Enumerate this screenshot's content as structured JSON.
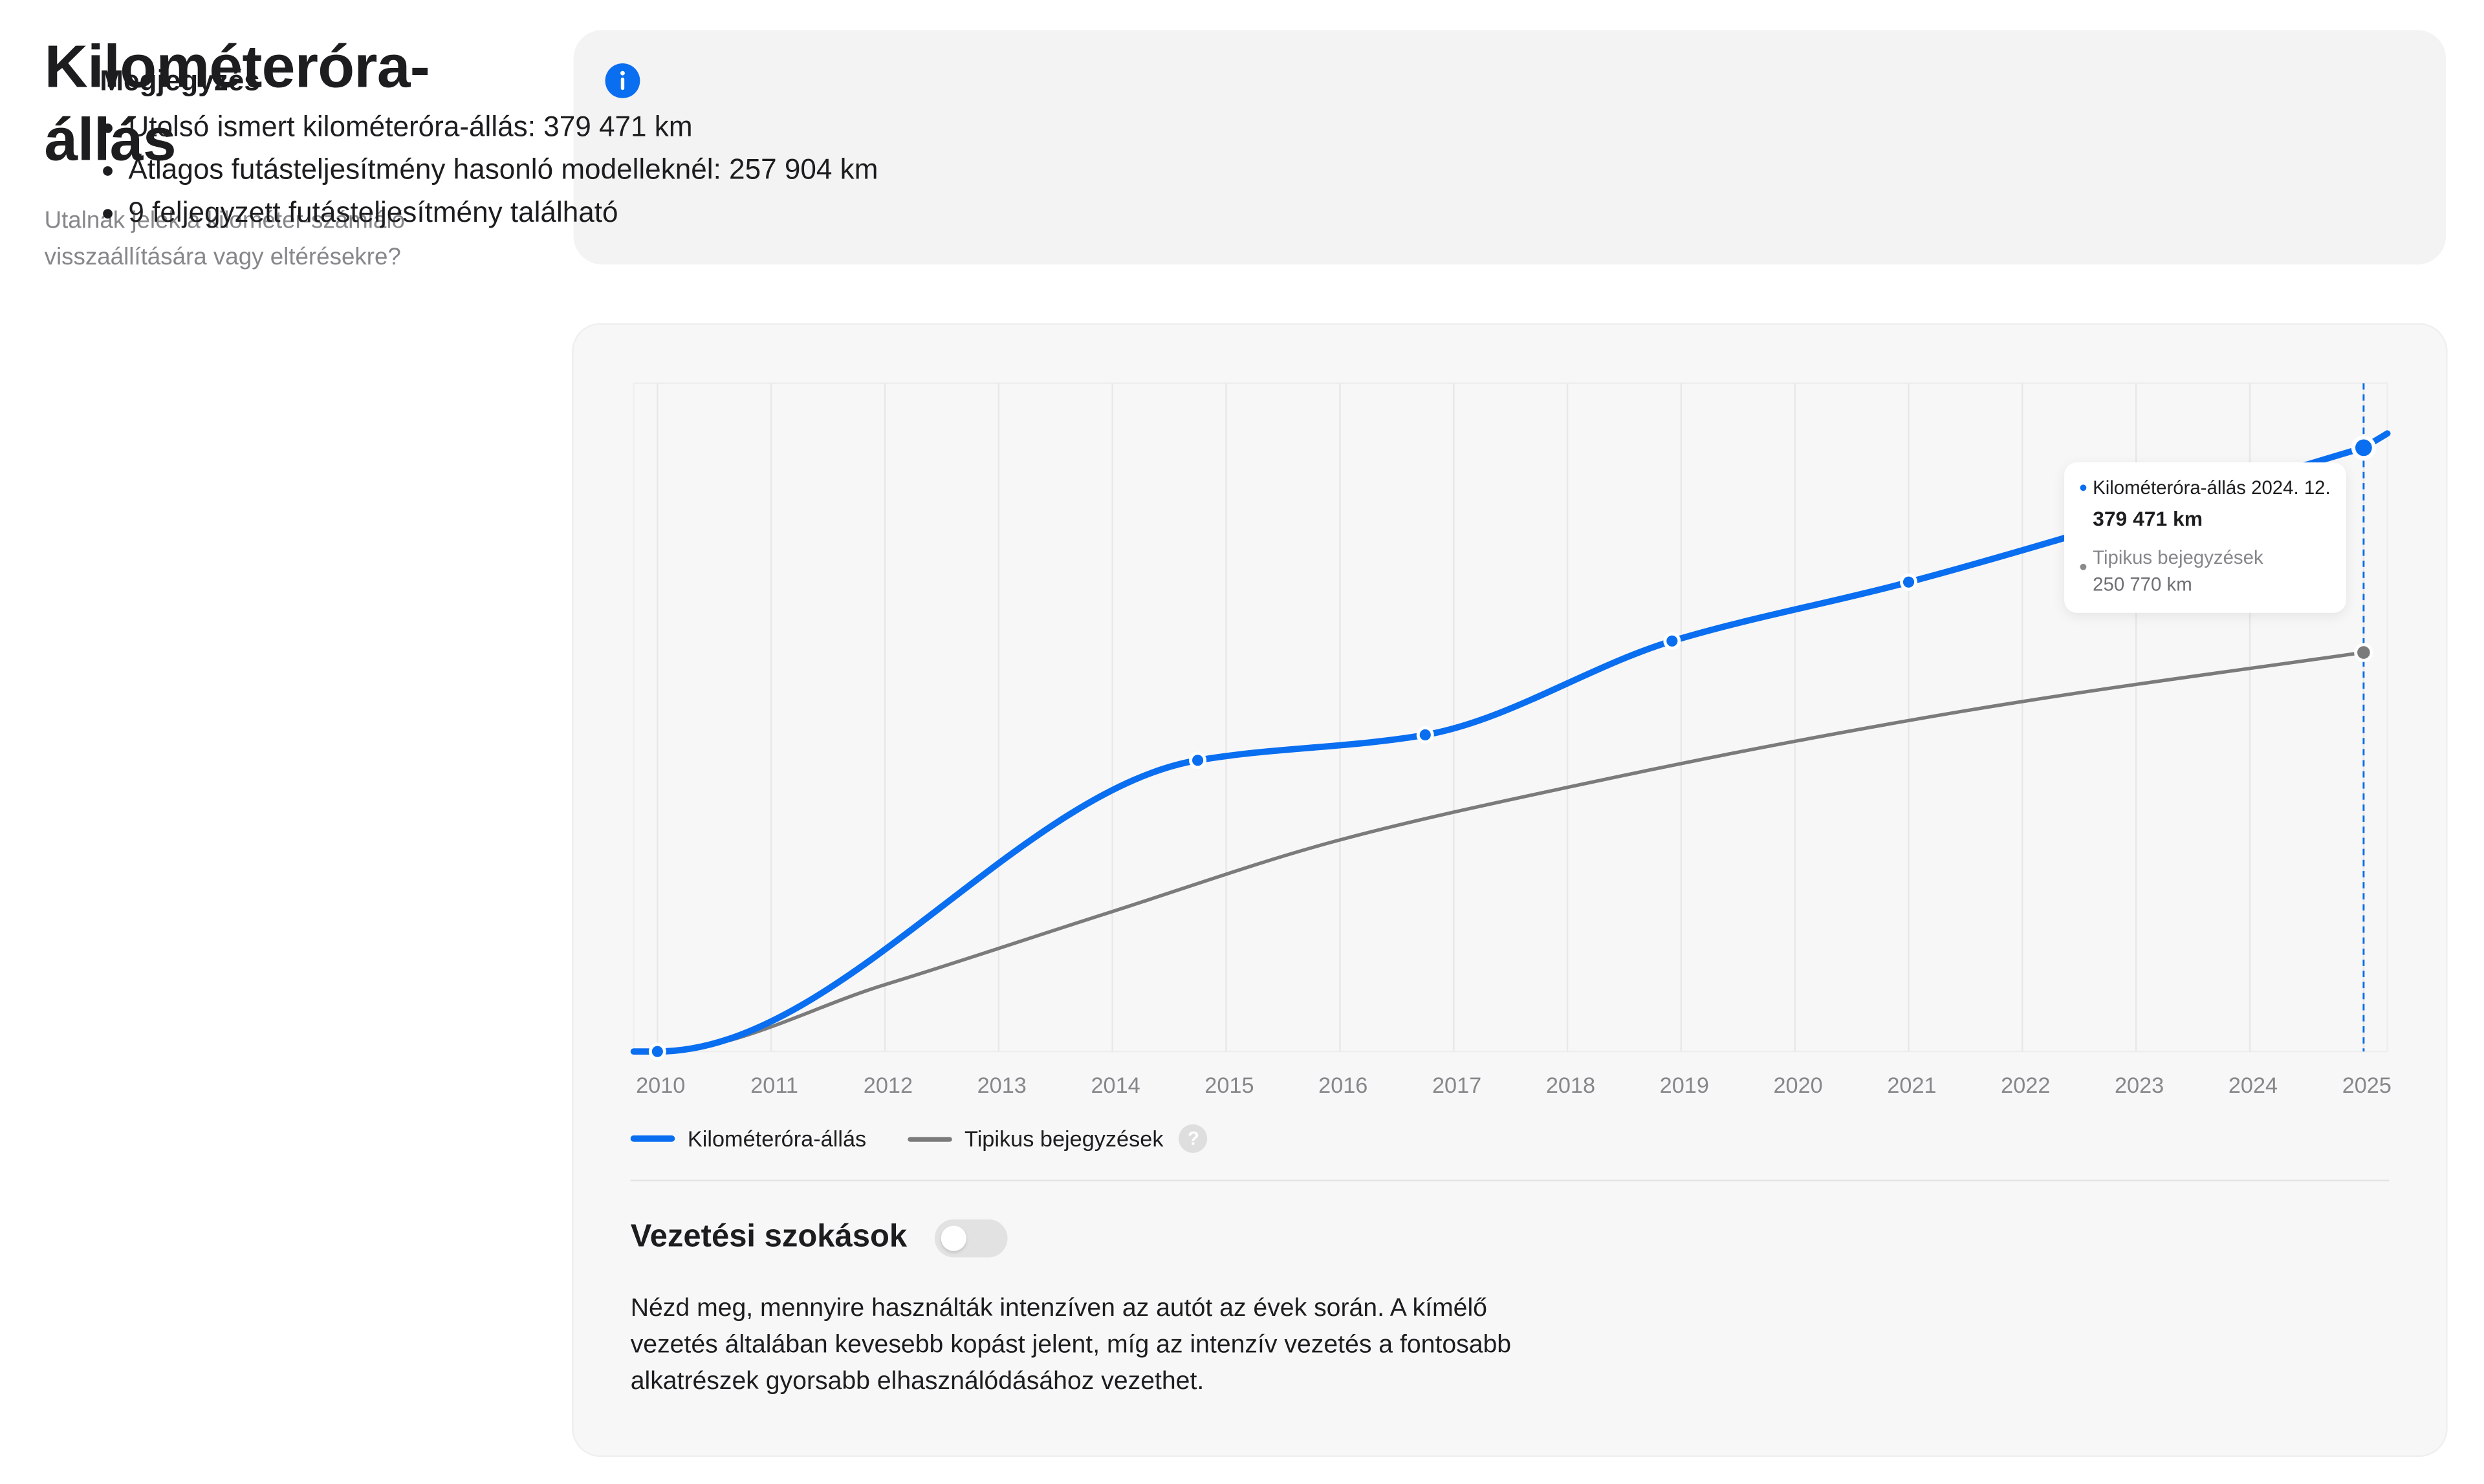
{
  "page": {
    "title": "Kilométeróra-állás",
    "subtitle": "Utalnak jelek a kilométer-számláló visszaállítására vagy eltérésekre?"
  },
  "note": {
    "icon": "info-icon",
    "title": "Megjegyzés",
    "items": [
      "Utolsó ismert kilométeróra-állás: 379 471 km",
      "Átlagos futásteljesítmény hasonló modelleknél: 257 904 km",
      "9 feljegyzett futásteljesítmény található"
    ]
  },
  "legend": {
    "odometer": "Kilométeróra-állás",
    "typical": "Tipikus bejegyzések",
    "help_icon": "question-mark-icon",
    "help_glyph": "?"
  },
  "tooltip": {
    "label1": "Kilométeróra-állás 2024. 12.",
    "value1": "379 471 km",
    "label2": "Tipikus bejegyzések",
    "value2": "250 770 km"
  },
  "habits": {
    "title": "Vezetési szokások",
    "toggle_on": false,
    "text": "Nézd meg, mennyire használták intenzíven az autót az évek során. A kímélő vezetés általában kevesebb kopást jelent, míg az intenzív vezetés a fontosabb alkatrészek gyorsabb elhasználódásához vezethet."
  },
  "colors": {
    "accent": "#0a6ef0",
    "typical": "#7b7b7b",
    "info": "#0a6ef0"
  },
  "chart_data": {
    "type": "line",
    "x_tick_labels": [
      "2010",
      "2011",
      "2012",
      "2013",
      "2014",
      "2015",
      "2016",
      "2017",
      "2018",
      "2019",
      "2020",
      "2021",
      "2022",
      "2023",
      "2024",
      "2025"
    ],
    "xlim": [
      2010,
      2025.2
    ],
    "ylim": [
      0,
      420000
    ],
    "grid": "vertical",
    "legend_position": "bottom-left",
    "series": [
      {
        "name": "Kilométeróra-állás",
        "color": "#0a6ef0",
        "points": [
          {
            "x": 2010.0,
            "y": 0
          },
          {
            "x": 2014.75,
            "y": 183000
          },
          {
            "x": 2016.75,
            "y": 199000
          },
          {
            "x": 2018.92,
            "y": 258000
          },
          {
            "x": 2021.0,
            "y": 295000
          },
          {
            "x": 2025.0,
            "y": 379471
          }
        ],
        "markers": [
          {
            "x": 2010.0,
            "y": 0
          },
          {
            "x": 2014.75,
            "y": 183000
          },
          {
            "x": 2016.75,
            "y": 199000
          },
          {
            "x": 2018.92,
            "y": 258000
          },
          {
            "x": 2021.0,
            "y": 295000
          },
          {
            "x": 2025.0,
            "y": 379471
          }
        ]
      },
      {
        "name": "Tipikus bejegyzések",
        "color": "#7b7b7b",
        "points": [
          {
            "x": 2010.0,
            "y": 0
          },
          {
            "x": 2012.0,
            "y": 42000
          },
          {
            "x": 2014.0,
            "y": 88000
          },
          {
            "x": 2016.0,
            "y": 133000
          },
          {
            "x": 2018.0,
            "y": 166000
          },
          {
            "x": 2020.0,
            "y": 195000
          },
          {
            "x": 2022.0,
            "y": 220000
          },
          {
            "x": 2025.0,
            "y": 250770
          }
        ],
        "markers": [
          {
            "x": 2025.0,
            "y": 250770
          }
        ]
      }
    ],
    "highlight_x": 2025.0
  }
}
